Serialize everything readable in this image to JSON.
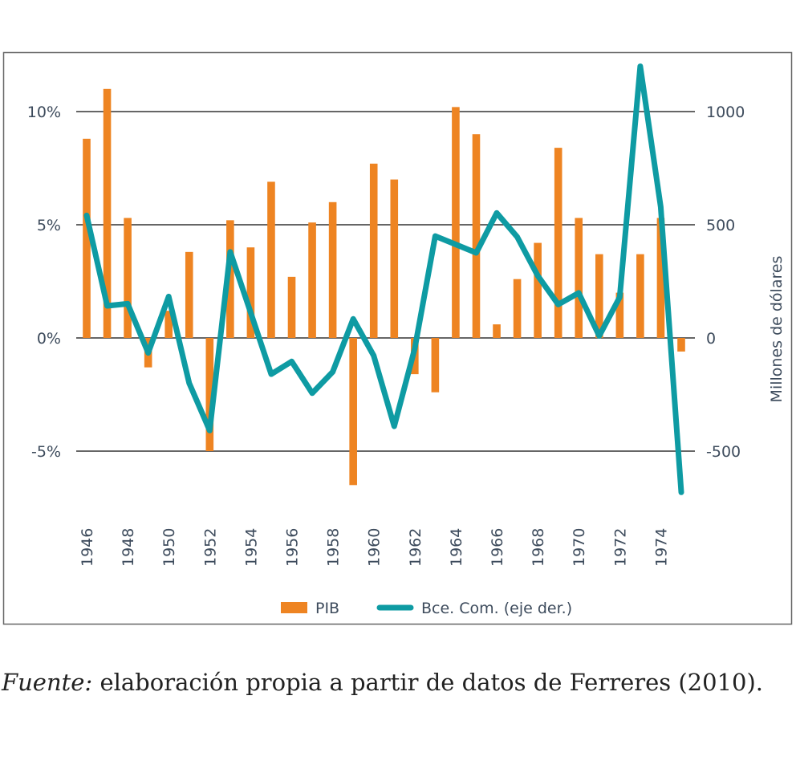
{
  "chart_data": {
    "type": "bar+line",
    "x": [
      1946,
      1947,
      1948,
      1949,
      1950,
      1951,
      1952,
      1953,
      1954,
      1955,
      1956,
      1957,
      1958,
      1959,
      1960,
      1961,
      1962,
      1963,
      1964,
      1965,
      1966,
      1967,
      1968,
      1969,
      1970,
      1971,
      1972,
      1973,
      1974,
      1975
    ],
    "x_tick_labels": [
      "1946",
      "1948",
      "1950",
      "1952",
      "1954",
      "1956",
      "1958",
      "1960",
      "1962",
      "1964",
      "1966",
      "1968",
      "1970",
      "1972",
      "1974"
    ],
    "series": [
      {
        "name": "PIB",
        "type": "bar",
        "axis": "left",
        "color": "#ee8422",
        "values": [
          8.8,
          11.0,
          5.3,
          -1.3,
          1.2,
          3.8,
          -5.0,
          5.2,
          4.0,
          6.9,
          2.7,
          5.1,
          6.0,
          -6.5,
          7.7,
          7.0,
          -1.6,
          -2.4,
          10.2,
          9.0,
          0.6,
          2.6,
          4.2,
          8.4,
          5.3,
          3.7,
          2.0,
          3.7,
          5.3,
          -0.6
        ]
      },
      {
        "name": "Bce. Com. (eje der.)",
        "type": "line",
        "axis": "right",
        "color": "#0e9ba3",
        "values": [
          541,
          142,
          151,
          -66,
          183,
          -200,
          -409,
          380,
          112,
          -160,
          -104,
          -244,
          -150,
          84,
          -78,
          -390,
          -48,
          450,
          413,
          376,
          552,
          446,
          275,
          148,
          199,
          9,
          180,
          1200,
          579,
          -682
        ]
      }
    ],
    "left_axis": {
      "ticks": [
        -5,
        0,
        5,
        10
      ],
      "tick_labels": [
        "-5%",
        "0%",
        "5%",
        "10%"
      ],
      "range": [
        -8.5,
        12.5
      ]
    },
    "right_axis": {
      "ticks": [
        -500,
        0,
        500,
        1000
      ],
      "tick_labels": [
        "-500",
        "0",
        "500",
        "1000"
      ],
      "range": [
        -850,
        1250
      ],
      "label": "Millones de dólares"
    },
    "legend": {
      "placement": "bottom-center",
      "items": [
        "PIB",
        "Bce. Com. (eje der.)"
      ]
    },
    "grid": "horizontal"
  },
  "caption": {
    "source_label": "Fuente:",
    "text": " elaboración propia a partir de datos de Ferreres (2010)."
  }
}
